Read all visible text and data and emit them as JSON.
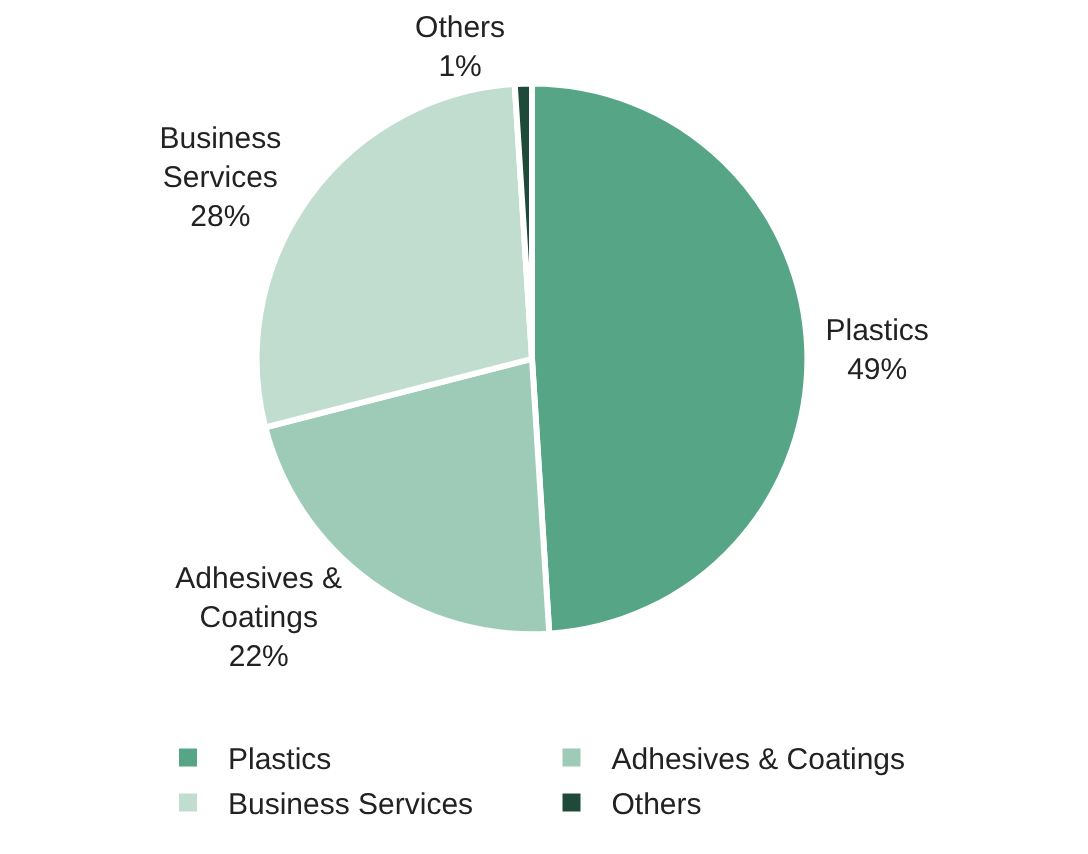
{
  "chart_data": {
    "type": "pie",
    "categories": [
      "Plastics",
      "Adhesives & Coatings",
      "Business Services",
      "Others"
    ],
    "values": [
      49,
      22,
      28,
      1
    ],
    "colors": [
      "#55a586",
      "#9ecbb8",
      "#c0ddd0",
      "#1f4a3a"
    ],
    "value_labels": [
      "Plastics\n49%",
      "Adhesives &\nCoatings\n22%",
      "Business\nServices\n28%",
      "Others\n1%"
    ],
    "legend": "bottom"
  }
}
